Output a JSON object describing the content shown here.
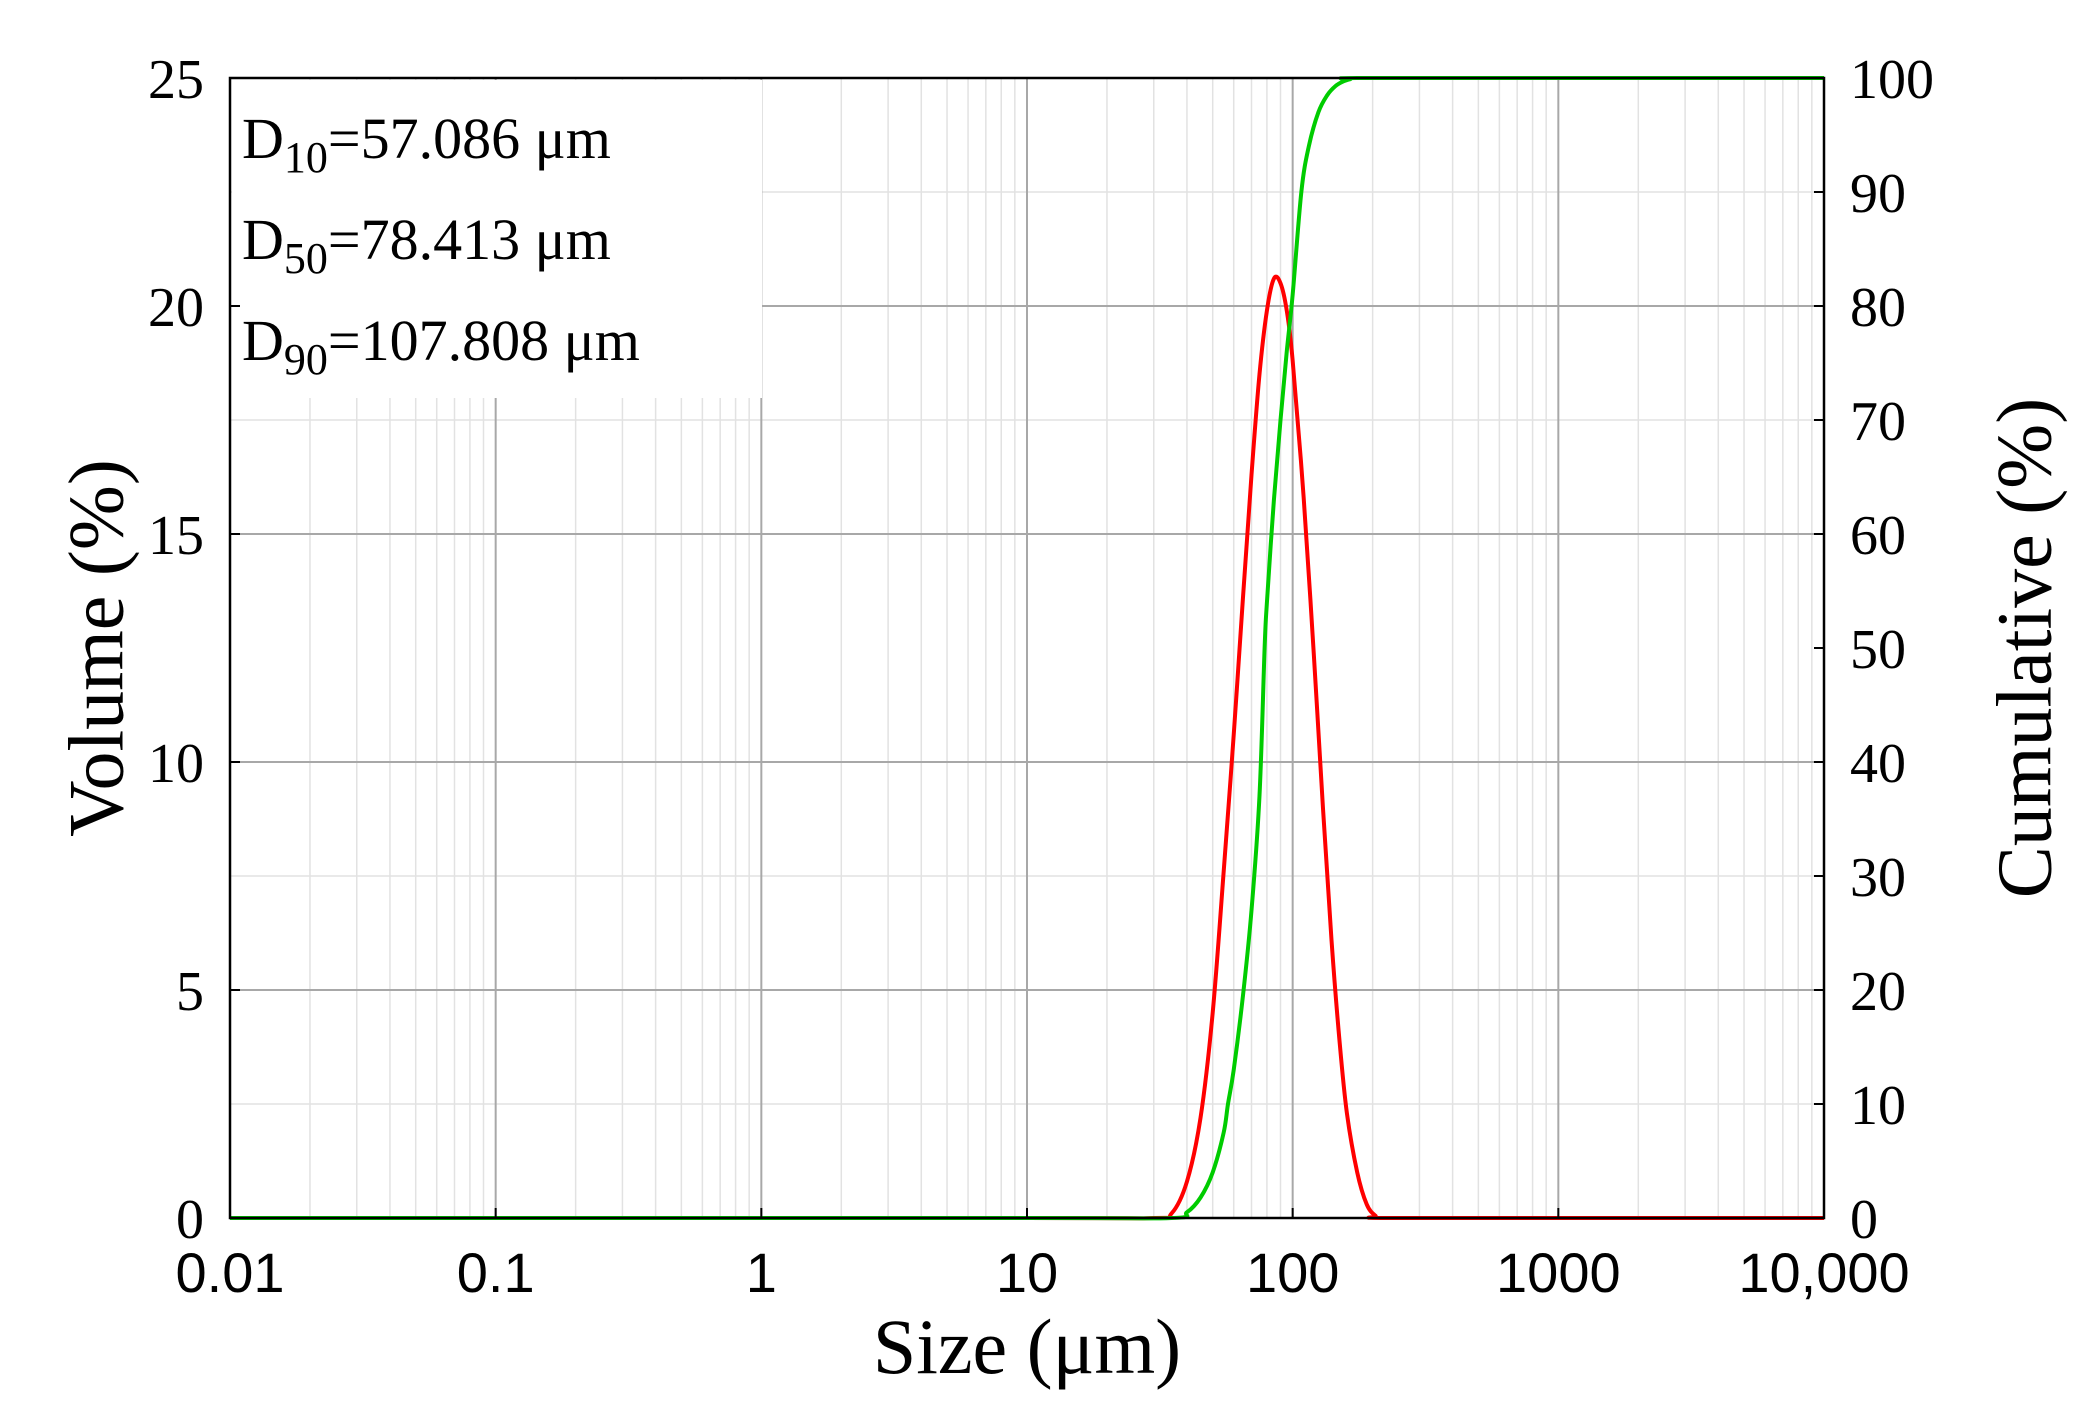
{
  "chart_data": {
    "type": "line",
    "x_scale": "log",
    "xlim": [
      0.01,
      10000
    ],
    "ylim_left": [
      0,
      25
    ],
    "ylim_right": [
      0,
      100
    ],
    "xlabel": "Size (μm)",
    "ylabel_left": "Volume (%)",
    "ylabel_right": "Cumulative (%)",
    "grid": true,
    "x_ticks": [
      0.01,
      0.1,
      1,
      10,
      100,
      1000,
      10000
    ],
    "x_tick_labels": [
      "0.01",
      "0.1",
      "1",
      "10",
      "100",
      "1000",
      "10,000"
    ],
    "y_left_ticks": [
      0,
      5,
      10,
      15,
      20,
      25
    ],
    "y_left_tick_labels": [
      "0",
      "5",
      "10",
      "15",
      "20",
      "25"
    ],
    "y_right_ticks": [
      0,
      10,
      20,
      30,
      40,
      50,
      60,
      70,
      80,
      90,
      100
    ],
    "y_right_tick_labels": [
      "0",
      "10",
      "20",
      "30",
      "40",
      "50",
      "60",
      "70",
      "80",
      "90",
      "100"
    ],
    "annotations": [
      {
        "main": "D",
        "sub": "10",
        "rest": "=57.086 μm"
      },
      {
        "main": "D",
        "sub": "50",
        "rest": "=78.413 μm"
      },
      {
        "main": "D",
        "sub": "90",
        "rest": "=107.808 μm"
      }
    ],
    "series": [
      {
        "axis": "left",
        "color": "#ff0000",
        "x": [
          0.01,
          10,
          30,
          35,
          40,
          45,
          50,
          55,
          60,
          65,
          70,
          75,
          80,
          85,
          90,
          95,
          100,
          110,
          120,
          130,
          140,
          150,
          160,
          175,
          190,
          205,
          220,
          1000,
          10000
        ],
        "y": [
          0,
          0,
          0,
          0.1,
          0.8,
          2.2,
          4.5,
          7.6,
          10.6,
          13.6,
          16.3,
          18.5,
          19.9,
          20.6,
          20.5,
          19.9,
          18.8,
          15.8,
          12.4,
          9.0,
          6.1,
          3.9,
          2.3,
          1.0,
          0.3,
          0.05,
          0,
          0,
          0
        ]
      },
      {
        "axis": "right",
        "color": "#00cc00",
        "x": [
          0.01,
          10,
          35,
          40,
          45,
          50,
          55,
          57.086,
          60,
          65,
          70,
          75,
          78.413,
          80,
          85,
          90,
          95,
          100,
          107.808,
          115,
          125,
          135,
          145,
          155,
          165,
          175,
          1000,
          10000
        ],
        "y": [
          0,
          0,
          0,
          0.5,
          1.8,
          4.0,
          7.5,
          10,
          13,
          19.5,
          27,
          37,
          50,
          54,
          63,
          70,
          76,
          81,
          90,
          94,
          97,
          98.5,
          99.3,
          99.7,
          99.9,
          100,
          100,
          100
        ]
      }
    ]
  }
}
